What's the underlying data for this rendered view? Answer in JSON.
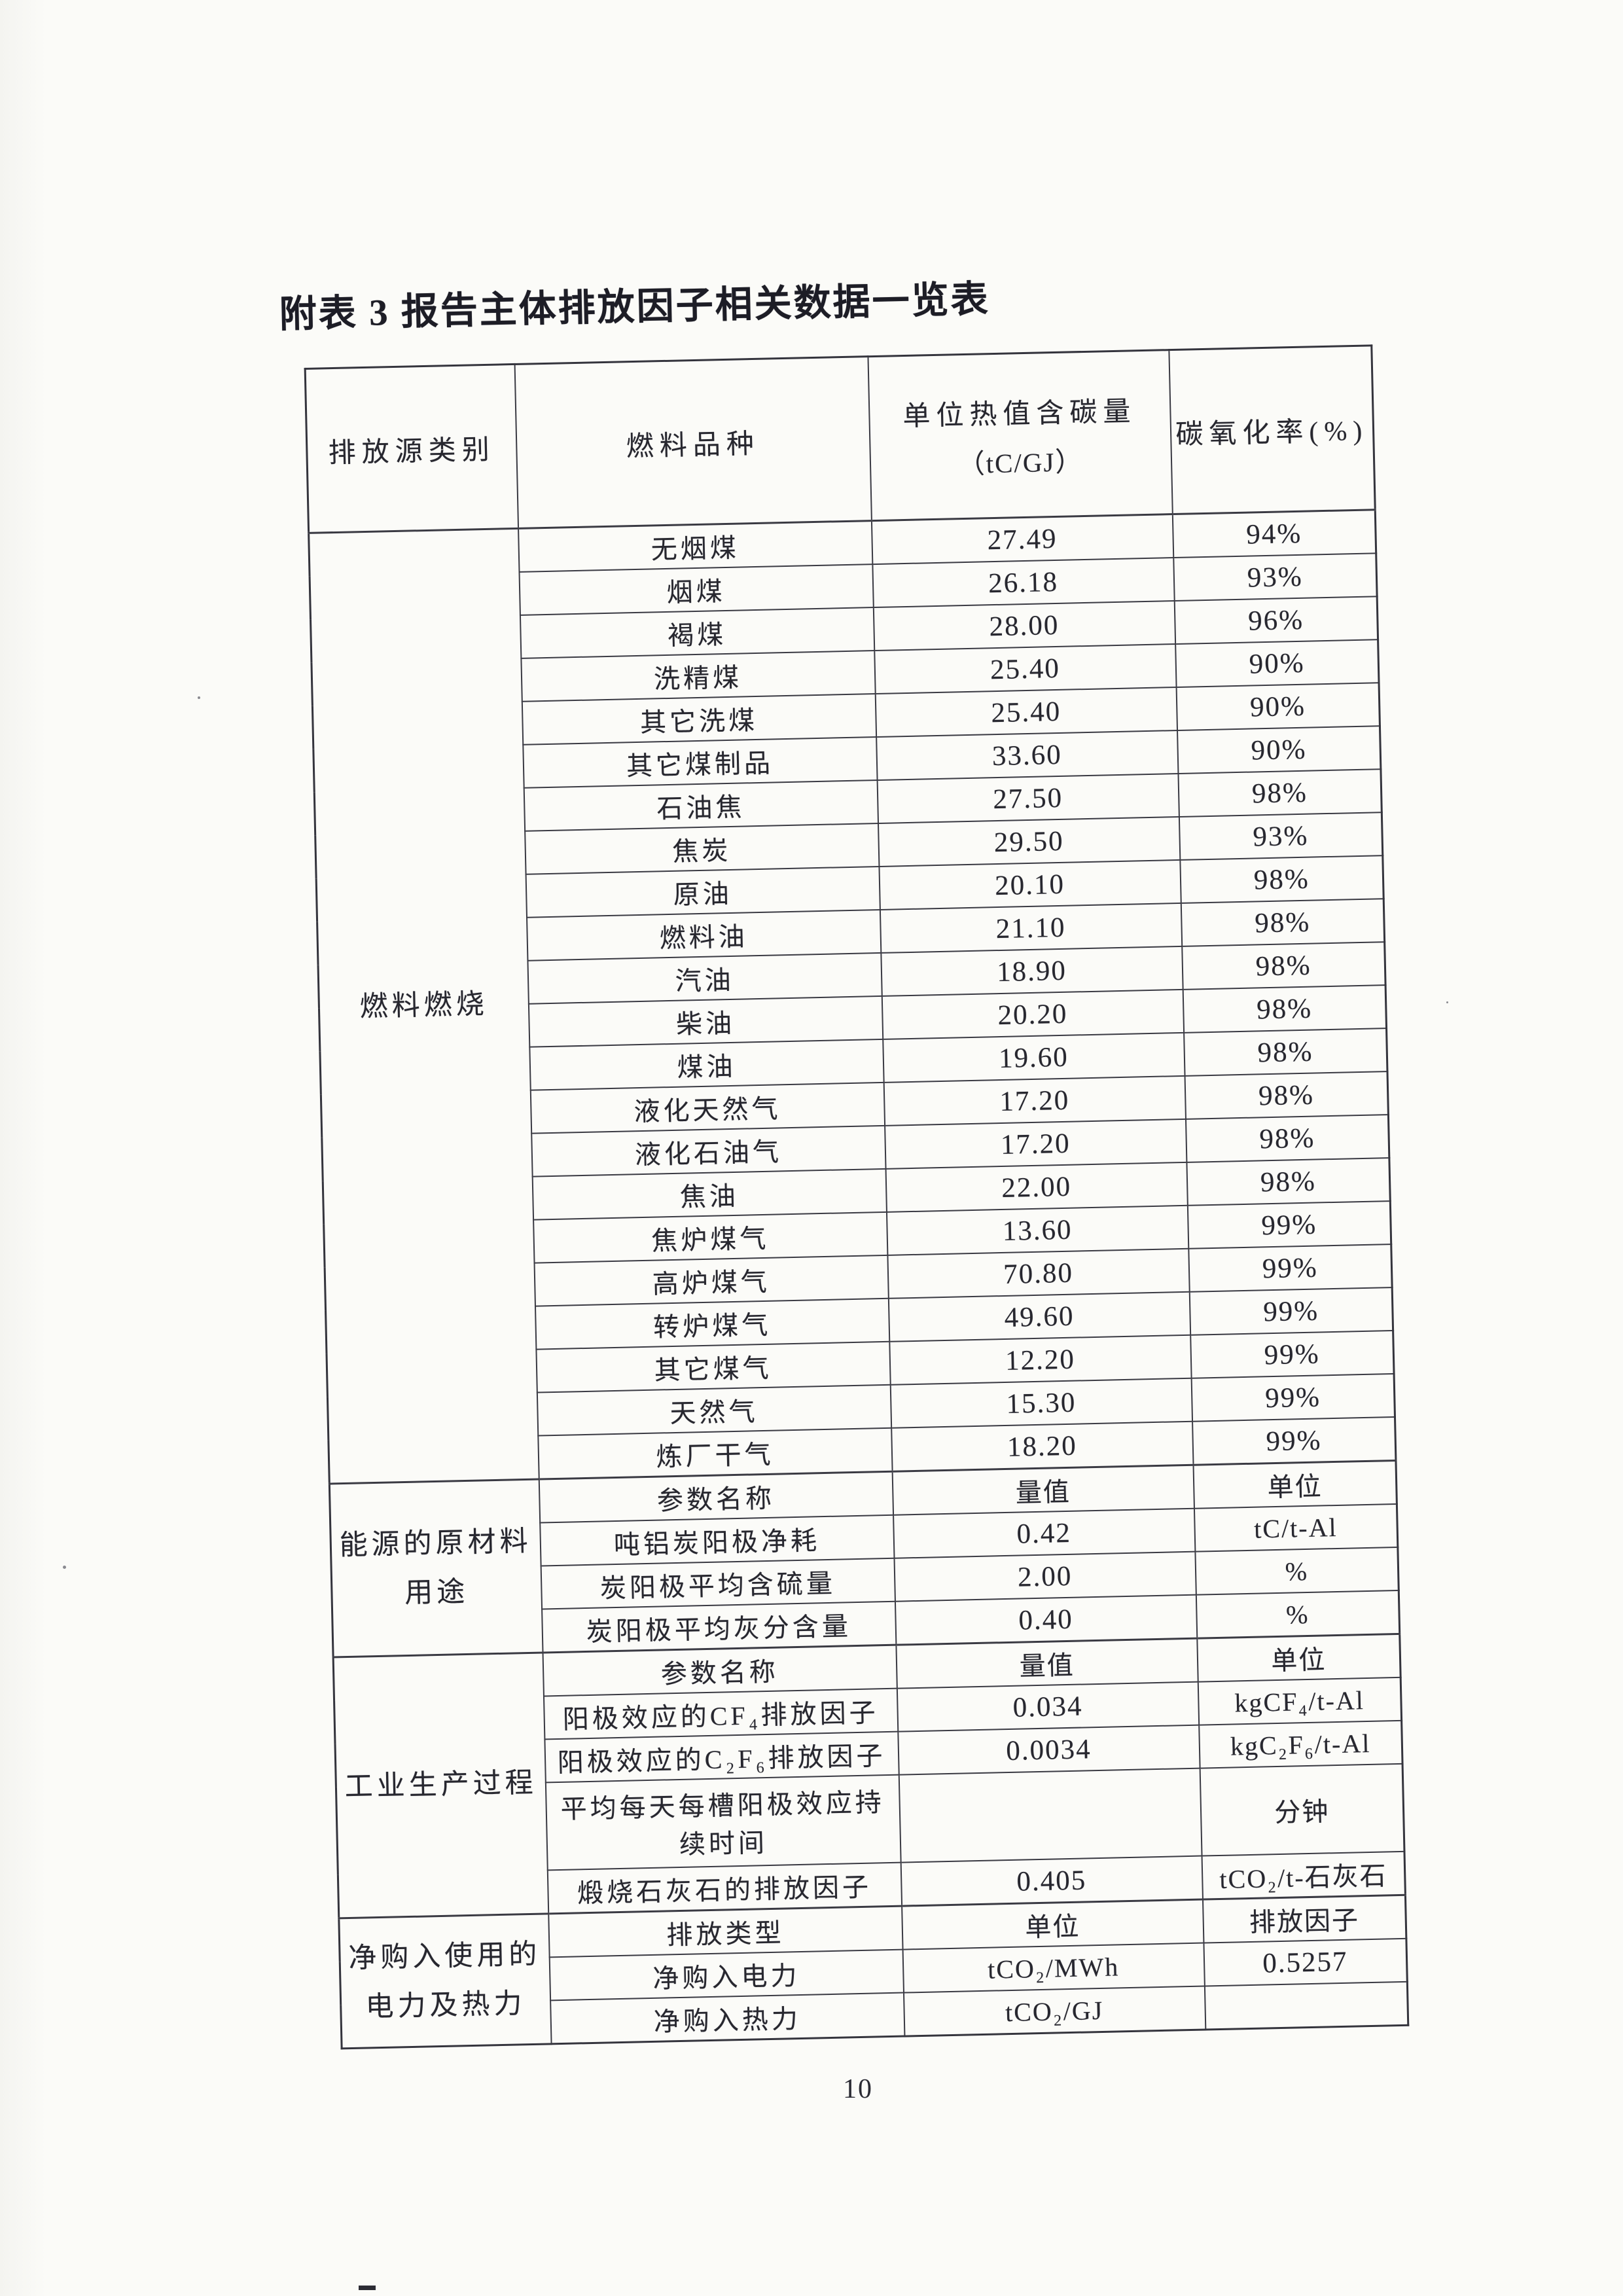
{
  "title": "附表 3 报告主体排放因子相关数据一览表",
  "page_number": "10",
  "table": {
    "headers": [
      {
        "label": "排放源类别"
      },
      {
        "label": "燃料品种"
      },
      {
        "label": "单位热值含碳量",
        "sub": "（tC/GJ）"
      },
      {
        "label": "碳氧化率(%)"
      }
    ]
  },
  "sections": [
    {
      "category": "燃料燃烧",
      "rows": [
        {
          "cells": [
            "无烟煤",
            "27.49",
            "94%"
          ]
        },
        {
          "cells": [
            "烟煤",
            "26.18",
            "93%"
          ]
        },
        {
          "cells": [
            "褐煤",
            "28.00",
            "96%"
          ]
        },
        {
          "cells": [
            "洗精煤",
            "25.40",
            "90%"
          ]
        },
        {
          "cells": [
            "其它洗煤",
            "25.40",
            "90%"
          ]
        },
        {
          "cells": [
            "其它煤制品",
            "33.60",
            "90%"
          ]
        },
        {
          "cells": [
            "石油焦",
            "27.50",
            "98%"
          ]
        },
        {
          "cells": [
            "焦炭",
            "29.50",
            "93%"
          ]
        },
        {
          "cells": [
            "原油",
            "20.10",
            "98%"
          ]
        },
        {
          "cells": [
            "燃料油",
            "21.10",
            "98%"
          ]
        },
        {
          "cells": [
            "汽油",
            "18.90",
            "98%"
          ]
        },
        {
          "cells": [
            "柴油",
            "20.20",
            "98%"
          ]
        },
        {
          "cells": [
            "煤油",
            "19.60",
            "98%"
          ]
        },
        {
          "cells": [
            "液化天然气",
            "17.20",
            "98%"
          ]
        },
        {
          "cells": [
            "液化石油气",
            "17.20",
            "98%"
          ]
        },
        {
          "cells": [
            "焦油",
            "22.00",
            "98%"
          ]
        },
        {
          "cells": [
            "焦炉煤气",
            "13.60",
            "99%"
          ]
        },
        {
          "cells": [
            "高炉煤气",
            "70.80",
            "99%"
          ]
        },
        {
          "cells": [
            "转炉煤气",
            "49.60",
            "99%"
          ]
        },
        {
          "cells": [
            "其它煤气",
            "12.20",
            "99%"
          ]
        },
        {
          "cells": [
            "天然气",
            "15.30",
            "99%"
          ]
        },
        {
          "cells": [
            "炼厂干气",
            "18.20",
            "99%"
          ]
        }
      ]
    },
    {
      "category": "能源的原材料\n用途",
      "rows": [
        {
          "cells": [
            "参数名称",
            "量值",
            "单位"
          ]
        },
        {
          "cells": [
            "吨铝炭阳极净耗",
            "0.42",
            "tC/t-Al"
          ]
        },
        {
          "cells": [
            "炭阳极平均含硫量",
            "2.00",
            "%"
          ]
        },
        {
          "cells": [
            "炭阳极平均灰分含量",
            "0.40",
            "%"
          ]
        }
      ]
    },
    {
      "category": "工业生产过程",
      "rows": [
        {
          "cells": [
            "参数名称",
            "量值",
            "单位"
          ]
        },
        {
          "cells": [
            "阳极效应的CF₄排放因子",
            "0.034",
            "kgCF₄/t-Al"
          ]
        },
        {
          "cells": [
            "阳极效应的C₂F₆排放因子",
            "0.0034",
            "kgC₂F₆/t-Al"
          ]
        },
        {
          "cells": [
            "平均每天每槽阳极效应持续时间",
            "",
            "分钟"
          ],
          "tall": true
        },
        {
          "cells": [
            "煅烧石灰石的排放因子",
            "0.405",
            "tCO₂/t-石灰石"
          ]
        }
      ]
    },
    {
      "category": "净购入使用的\n电力及热力",
      "rows": [
        {
          "cells": [
            "排放类型",
            "单位",
            "排放因子"
          ]
        },
        {
          "cells": [
            "净购入电力",
            "tCO₂/MWh",
            "0.5257"
          ]
        },
        {
          "cells": [
            "净购入热力",
            "tCO₂/GJ",
            ""
          ]
        }
      ]
    }
  ]
}
